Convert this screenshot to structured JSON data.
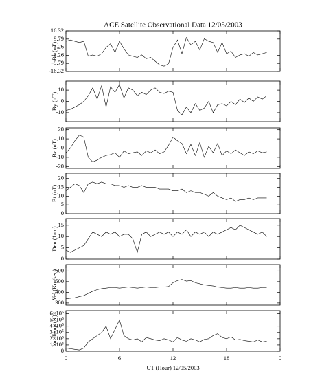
{
  "chart_data": [
    {
      "type": "line",
      "title": "ACE Satellite Observational Data   12/05/2003",
      "ylabel": "Bx (nT)",
      "x": [
        0,
        0.5,
        1,
        1.5,
        2,
        2.5,
        3,
        3.5,
        4,
        4.5,
        5,
        5.5,
        6,
        6.5,
        7,
        7.5,
        8,
        8.5,
        9,
        9.5,
        10,
        10.5,
        11,
        11.5,
        12,
        12.5,
        13,
        13.5,
        14,
        14.5,
        15,
        15.5,
        16,
        16.5,
        17,
        17.5,
        18,
        18.5,
        19,
        19.5,
        20,
        20.5,
        21,
        21.5,
        22,
        22.5
      ],
      "values": [
        8,
        9,
        8,
        7,
        8,
        -4,
        -3,
        -4,
        -2,
        3,
        6,
        -1,
        8,
        2,
        -3,
        -4,
        -5,
        -3,
        -6,
        -5,
        -8,
        -11,
        -12,
        -10,
        3,
        9,
        -2,
        11,
        5,
        8,
        1,
        10,
        8,
        7,
        -1,
        7,
        -2,
        0,
        -5,
        -3,
        -2,
        -4,
        -1,
        -3,
        -2,
        -1
      ],
      "xlim": [
        0,
        24
      ],
      "ylim": [
        -16.32,
        16.32
      ],
      "yticks": [
        16.32,
        9.79,
        3.26,
        -3.26,
        -9.79,
        -16.32
      ]
    },
    {
      "type": "line",
      "ylabel": "By (nT)",
      "x": [
        0,
        0.5,
        1,
        1.5,
        2,
        2.5,
        3,
        3.5,
        4,
        4.5,
        5,
        5.5,
        6,
        6.5,
        7,
        7.5,
        8,
        8.5,
        9,
        9.5,
        10,
        10.5,
        11,
        11.5,
        12,
        12.5,
        13,
        13.5,
        14,
        14.5,
        15,
        15.5,
        16,
        16.5,
        17,
        17.5,
        18,
        18.5,
        19,
        19.5,
        20,
        20.5,
        21,
        21.5,
        22,
        22.5
      ],
      "values": [
        -8,
        -7,
        -5,
        -3,
        0,
        5,
        12,
        2,
        14,
        -5,
        13,
        8,
        15,
        3,
        12,
        10,
        5,
        8,
        6,
        10,
        12,
        8,
        7,
        9,
        8,
        -8,
        -12,
        -5,
        -10,
        -2,
        -8,
        -6,
        0,
        -10,
        -3,
        -2,
        -4,
        0,
        -3,
        2,
        -1,
        3,
        0,
        4,
        2,
        5
      ],
      "xlim": [
        0,
        24
      ],
      "ylim": [
        -18,
        18
      ],
      "yticks": [
        10,
        0,
        -10
      ]
    },
    {
      "type": "line",
      "ylabel": "Bz (nT)",
      "x": [
        0,
        0.5,
        1,
        1.5,
        2,
        2.5,
        3,
        3.5,
        4,
        4.5,
        5,
        5.5,
        6,
        6.5,
        7,
        7.5,
        8,
        8.5,
        9,
        9.5,
        10,
        10.5,
        11,
        11.5,
        12,
        12.5,
        13,
        13.5,
        14,
        14.5,
        15,
        15.5,
        16,
        16.5,
        17,
        17.5,
        18,
        18.5,
        19,
        19.5,
        20,
        20.5,
        21,
        21.5,
        22,
        22.5
      ],
      "values": [
        -5,
        0,
        8,
        14,
        12,
        -10,
        -15,
        -13,
        -10,
        -8,
        -7,
        -5,
        -10,
        -3,
        -6,
        -5,
        -4,
        -8,
        -3,
        -5,
        -2,
        -6,
        -4,
        3,
        12,
        8,
        5,
        -6,
        4,
        -8,
        6,
        -10,
        2,
        -5,
        5,
        -8,
        -3,
        -6,
        -2,
        -5,
        -8,
        -4,
        -6,
        -3,
        -5,
        -4
      ],
      "xlim": [
        0,
        24
      ],
      "ylim": [
        -22,
        22
      ],
      "yticks": [
        20,
        10,
        0,
        -10,
        -20
      ]
    },
    {
      "type": "line",
      "ylabel": "Bt (nT)",
      "x": [
        0,
        0.5,
        1,
        1.5,
        2,
        2.5,
        3,
        3.5,
        4,
        4.5,
        5,
        5.5,
        6,
        6.5,
        7,
        7.5,
        8,
        8.5,
        9,
        9.5,
        10,
        10.5,
        11,
        11.5,
        12,
        12.5,
        13,
        13.5,
        14,
        14.5,
        15,
        15.5,
        16,
        16.5,
        17,
        17.5,
        18,
        18.5,
        19,
        19.5,
        20,
        20.5,
        21,
        21.5,
        22,
        22.5
      ],
      "values": [
        13,
        15,
        17,
        16,
        12,
        17,
        18,
        17,
        18,
        17,
        17,
        16,
        16,
        15,
        16,
        15,
        15,
        16,
        15,
        15,
        15,
        14,
        14,
        14,
        13,
        13,
        14,
        12,
        13,
        12,
        12,
        11,
        10,
        12,
        10,
        9,
        8,
        9,
        7,
        8,
        8,
        9,
        8,
        9,
        9,
        9
      ],
      "xlim": [
        0,
        24
      ],
      "ylim": [
        0,
        23
      ],
      "yticks": [
        20,
        15,
        10,
        5,
        0
      ]
    },
    {
      "type": "line",
      "ylabel": "Den (1/cc)",
      "x": [
        0,
        0.5,
        1,
        1.5,
        2,
        2.5,
        3,
        3.5,
        4,
        4.5,
        5,
        5.5,
        6,
        6.5,
        7,
        7.5,
        8,
        8.5,
        9,
        9.5,
        10,
        10.5,
        11,
        11.5,
        12,
        12.5,
        13,
        13.5,
        14,
        14.5,
        15,
        15.5,
        16,
        16.5,
        17,
        17.5,
        18,
        18.5,
        19,
        19.5,
        20,
        20.5,
        21,
        21.5,
        22,
        22.5
      ],
      "values": [
        4,
        3,
        4,
        5,
        6,
        9,
        12,
        11,
        10,
        12,
        11,
        12,
        10,
        11,
        11,
        9,
        3,
        11,
        12,
        10,
        11,
        12,
        11,
        12,
        10,
        12,
        11,
        13,
        10,
        12,
        11,
        12,
        10,
        12,
        11,
        12,
        13,
        14,
        13,
        15,
        14,
        13,
        12,
        11,
        12,
        10
      ],
      "xlim": [
        0,
        24
      ],
      "ylim": [
        0,
        18
      ],
      "yticks": [
        15,
        10,
        5,
        0
      ]
    },
    {
      "type": "line",
      "ylabel": "Vel (Km/sec)",
      "x": [
        0,
        0.5,
        1,
        1.5,
        2,
        2.5,
        3,
        3.5,
        4,
        4.5,
        5,
        5.5,
        6,
        6.5,
        7,
        7.5,
        8,
        8.5,
        9,
        9.5,
        10,
        10.5,
        11,
        11.5,
        12,
        12.5,
        13,
        13.5,
        14,
        14.5,
        15,
        15.5,
        16,
        16.5,
        17,
        17.5,
        18,
        18.5,
        19,
        19.5,
        20,
        20.5,
        21,
        21.5,
        22,
        22.5
      ],
      "values": [
        340,
        345,
        350,
        360,
        370,
        390,
        410,
        425,
        435,
        440,
        445,
        445,
        440,
        445,
        450,
        445,
        440,
        445,
        450,
        445,
        445,
        450,
        450,
        455,
        490,
        510,
        520,
        505,
        510,
        490,
        480,
        470,
        465,
        460,
        450,
        445,
        440,
        440,
        445,
        440,
        440,
        445,
        440,
        440,
        445,
        445
      ],
      "xlim": [
        0,
        24
      ],
      "ylim": [
        280,
        660
      ],
      "yticks": [
        600,
        500,
        400,
        300
      ]
    },
    {
      "type": "line",
      "ylabel": "Ion Temp (K)",
      "xlabel": "UT (Hour)   12/05/2003",
      "x": [
        0,
        0.5,
        1,
        1.5,
        2,
        2.5,
        3,
        3.5,
        4,
        4.5,
        5,
        5.5,
        6,
        6.5,
        7,
        7.5,
        8,
        8.5,
        9,
        9.5,
        10,
        10.5,
        11,
        11.5,
        12,
        12.5,
        13,
        13.5,
        14,
        14.5,
        15,
        15.5,
        16,
        16.5,
        17,
        17.5,
        18,
        18.5,
        19,
        19.5,
        20,
        20.5,
        21,
        21.5,
        22,
        22.5
      ],
      "values": [
        50000,
        40000,
        30000,
        20000,
        50000,
        150000,
        200000,
        250000,
        300000,
        400000,
        200000,
        350000,
        500000,
        250000,
        200000,
        180000,
        200000,
        150000,
        220000,
        200000,
        180000,
        170000,
        200000,
        180000,
        150000,
        220000,
        180000,
        160000,
        200000,
        180000,
        150000,
        190000,
        200000,
        250000,
        280000,
        220000,
        200000,
        230000,
        180000,
        190000,
        170000,
        160000,
        150000,
        180000,
        150000,
        160000
      ],
      "xlim": [
        0,
        24
      ],
      "ylim": [
        0,
        650000
      ],
      "yticks": [
        {
          "value": 600000,
          "label": "6×10⁵"
        },
        {
          "value": 500000,
          "label": "5×10⁵"
        },
        {
          "value": 400000,
          "label": "4×10⁵"
        },
        {
          "value": 300000,
          "label": "3×10⁵"
        },
        {
          "value": 200000,
          "label": "2×10⁵"
        },
        {
          "value": 100000,
          "label": "1×10⁵"
        },
        0
      ],
      "xticks": [
        0,
        6,
        12,
        18,
        {
          "value": 24,
          "label": "0"
        }
      ]
    }
  ]
}
